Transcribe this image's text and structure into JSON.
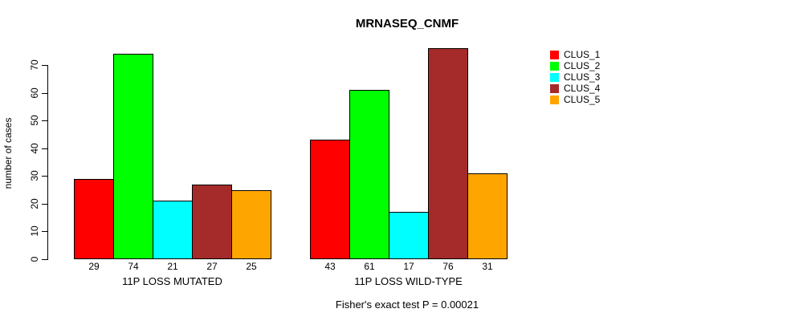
{
  "title": "MRNASEQ_CNMF",
  "footnote": "Fisher's exact test P = 0.00021",
  "chart_data": {
    "type": "bar",
    "title": "MRNASEQ_CNMF",
    "xlabel": "",
    "ylabel": "number of cases",
    "ylim": [
      0,
      70
    ],
    "yticks": [
      0,
      10,
      20,
      30,
      40,
      50,
      60,
      70
    ],
    "grid": false,
    "legend_position": "right",
    "bar_value_labels_shown": true,
    "categories": [
      "11P LOSS MUTATED",
      "11P LOSS WILD-TYPE"
    ],
    "series": [
      {
        "name": "CLUS_1",
        "color": "#FF0000",
        "values": [
          29,
          43
        ]
      },
      {
        "name": "CLUS_2",
        "color": "#00FF00",
        "values": [
          74,
          61
        ]
      },
      {
        "name": "CLUS_3",
        "color": "#00FFFF",
        "values": [
          21,
          17
        ]
      },
      {
        "name": "CLUS_4",
        "color": "#A52A2A",
        "values": [
          27,
          76
        ]
      },
      {
        "name": "CLUS_5",
        "color": "#FFA500",
        "values": [
          25,
          31
        ]
      }
    ],
    "annotation": "Fisher's exact test P = 0.00021"
  }
}
